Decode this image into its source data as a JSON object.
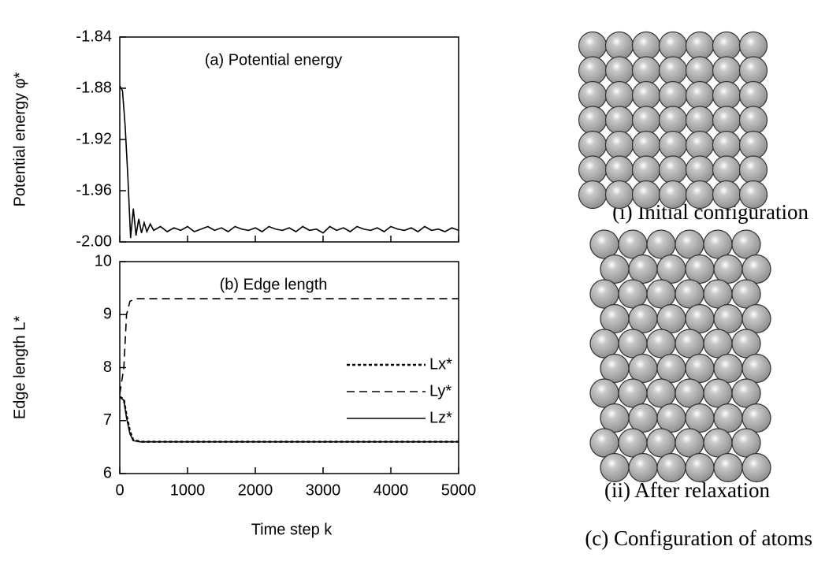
{
  "chart_data": [
    {
      "type": "line",
      "title": "(a) Potential energy",
      "y_label": "Potential energy  φ*",
      "xlim": [
        0,
        5000
      ],
      "xticks": [
        0,
        1000,
        2000,
        3000,
        4000,
        5000
      ],
      "ylim": [
        -2,
        -1.84
      ],
      "yticks": [
        -1.84,
        -1.88,
        -1.92,
        -1.96,
        {
          "value": -2,
          "label": "-2.00"
        }
      ],
      "x": [
        0,
        40,
        80,
        120,
        160,
        200,
        240,
        280,
        320,
        360,
        400,
        450,
        500,
        600,
        700,
        800,
        900,
        1000,
        1100,
        1200,
        1300,
        1400,
        1500,
        1600,
        1700,
        1800,
        1900,
        2000,
        2100,
        2200,
        2300,
        2400,
        2500,
        2600,
        2700,
        2800,
        2900,
        3000,
        3100,
        3200,
        3300,
        3400,
        3500,
        3600,
        3700,
        3800,
        3900,
        4000,
        4100,
        4200,
        4300,
        4400,
        4500,
        4600,
        4700,
        4800,
        4900,
        5000
      ],
      "series": [
        {
          "color": "#000000",
          "values": [
            -1.878,
            -1.882,
            -1.91,
            -1.95,
            -1.997,
            -1.974,
            -1.995,
            -1.982,
            -1.993,
            -1.985,
            -1.992,
            -1.986,
            -1.991,
            -1.988,
            -1.992,
            -1.989,
            -1.991,
            -1.988,
            -1.992,
            -1.99,
            -1.988,
            -1.991,
            -1.989,
            -1.992,
            -1.988,
            -1.99,
            -1.991,
            -1.989,
            -1.992,
            -1.988,
            -1.99,
            -1.991,
            -1.989,
            -1.992,
            -1.988,
            -1.991,
            -1.99,
            -1.993,
            -1.988,
            -1.991,
            -1.989,
            -1.992,
            -1.988,
            -1.99,
            -1.991,
            -1.989,
            -1.992,
            -1.988,
            -1.99,
            -1.991,
            -1.989,
            -1.992,
            -1.988,
            -1.991,
            -1.99,
            -1.992,
            -1.989,
            -1.991
          ]
        }
      ]
    },
    {
      "type": "line",
      "title": "(b) Edge length",
      "y_label": "Edge length  L*",
      "x_label": "Time step   k",
      "xlim": [
        0,
        5000
      ],
      "xticks": [
        0,
        1000,
        2000,
        3000,
        4000,
        5000
      ],
      "ylim": [
        6,
        10
      ],
      "yticks": [
        6,
        7,
        8,
        9,
        10
      ],
      "legend": "right",
      "x": [
        0,
        60,
        100,
        150,
        200,
        250,
        300,
        500,
        1000,
        2000,
        3000,
        4000,
        5000
      ],
      "series": [
        {
          "name": "Lx*",
          "color": "#000000",
          "dash": "4 3",
          "values": [
            7.45,
            7.4,
            7.1,
            6.8,
            6.63,
            6.62,
            6.6,
            6.6,
            6.6,
            6.6,
            6.6,
            6.6,
            6.6
          ]
        },
        {
          "name": "Ly*",
          "color": "#000000",
          "dash": "10 6",
          "values": [
            7.5,
            8.0,
            9.0,
            9.25,
            9.28,
            9.3,
            9.3,
            9.3,
            9.3,
            9.3,
            9.3,
            9.3,
            9.3
          ]
        },
        {
          "name": "Lz*",
          "color": "#000000",
          "dash": "none",
          "values": [
            7.45,
            7.38,
            7.05,
            6.75,
            6.62,
            6.61,
            6.6,
            6.6,
            6.6,
            6.6,
            6.6,
            6.6,
            6.6
          ]
        }
      ]
    }
  ],
  "figure_c": {
    "captions": [
      "(i) Initial configuration",
      "(ii) After relaxation"
    ],
    "title": "(c) Configuration of atoms"
  }
}
